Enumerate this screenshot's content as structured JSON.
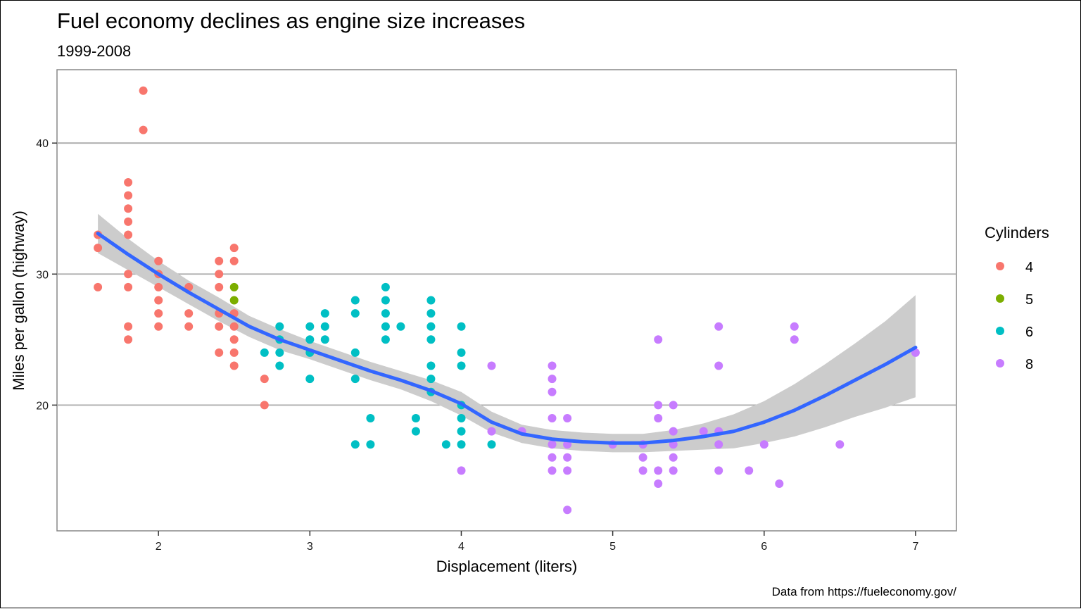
{
  "chart_data": {
    "type": "scatter",
    "title": "Fuel economy declines as engine size increases",
    "subtitle": "1999-2008",
    "xlabel": "Displacement (liters)",
    "ylabel": "Miles per gallon (highway)",
    "caption": "Data from https://fueleconomy.gov/",
    "xlim": [
      1.33,
      7.27
    ],
    "ylim": [
      10.4,
      45.6
    ],
    "x_ticks": [
      2,
      3,
      4,
      5,
      6,
      7
    ],
    "y_ticks": [
      20,
      30,
      40
    ],
    "grid": {
      "horizontal_major": true,
      "vertical": false
    },
    "legend": {
      "title": "Cylinders",
      "placement": "right",
      "entries": [
        {
          "label": "4",
          "color": "#F8766D"
        },
        {
          "label": "5",
          "color": "#7CAE00"
        },
        {
          "label": "6",
          "color": "#00BFC4"
        },
        {
          "label": "8",
          "color": "#C77CFF"
        }
      ]
    },
    "series": [
      {
        "name": "4",
        "color": "#F8766D",
        "points": [
          [
            1.6,
            33
          ],
          [
            1.6,
            32
          ],
          [
            1.6,
            29
          ],
          [
            1.8,
            37
          ],
          [
            1.8,
            36
          ],
          [
            1.8,
            35
          ],
          [
            1.8,
            34
          ],
          [
            1.8,
            33
          ],
          [
            1.8,
            30
          ],
          [
            1.8,
            29
          ],
          [
            1.8,
            26
          ],
          [
            1.8,
            25
          ],
          [
            1.9,
            44
          ],
          [
            1.9,
            41
          ],
          [
            2.0,
            31
          ],
          [
            2.0,
            30
          ],
          [
            2.0,
            29
          ],
          [
            2.0,
            28
          ],
          [
            2.0,
            27
          ],
          [
            2.0,
            26
          ],
          [
            2.2,
            29
          ],
          [
            2.2,
            27
          ],
          [
            2.2,
            26
          ],
          [
            2.4,
            31
          ],
          [
            2.4,
            30
          ],
          [
            2.4,
            29
          ],
          [
            2.4,
            27
          ],
          [
            2.4,
            26
          ],
          [
            2.4,
            24
          ],
          [
            2.5,
            32
          ],
          [
            2.5,
            31
          ],
          [
            2.5,
            27
          ],
          [
            2.5,
            26
          ],
          [
            2.5,
            25
          ],
          [
            2.5,
            24
          ],
          [
            2.5,
            23
          ],
          [
            2.7,
            22
          ],
          [
            2.7,
            20
          ]
        ]
      },
      {
        "name": "5",
        "color": "#7CAE00",
        "points": [
          [
            2.5,
            29
          ],
          [
            2.5,
            28
          ]
        ]
      },
      {
        "name": "6",
        "color": "#00BFC4",
        "points": [
          [
            2.7,
            24
          ],
          [
            2.8,
            26
          ],
          [
            2.8,
            25
          ],
          [
            2.8,
            24
          ],
          [
            2.8,
            23
          ],
          [
            3.0,
            26
          ],
          [
            3.0,
            25
          ],
          [
            3.0,
            24
          ],
          [
            3.0,
            22
          ],
          [
            3.1,
            27
          ],
          [
            3.1,
            26
          ],
          [
            3.1,
            25
          ],
          [
            3.3,
            28
          ],
          [
            3.3,
            27
          ],
          [
            3.3,
            24
          ],
          [
            3.3,
            22
          ],
          [
            3.3,
            17
          ],
          [
            3.4,
            19
          ],
          [
            3.4,
            17
          ],
          [
            3.5,
            29
          ],
          [
            3.5,
            28
          ],
          [
            3.5,
            27
          ],
          [
            3.5,
            26
          ],
          [
            3.5,
            25
          ],
          [
            3.6,
            26
          ],
          [
            3.7,
            19
          ],
          [
            3.7,
            18
          ],
          [
            3.8,
            28
          ],
          [
            3.8,
            27
          ],
          [
            3.8,
            26
          ],
          [
            3.8,
            25
          ],
          [
            3.8,
            23
          ],
          [
            3.8,
            22
          ],
          [
            3.8,
            21
          ],
          [
            3.9,
            17
          ],
          [
            4.0,
            26
          ],
          [
            4.0,
            24
          ],
          [
            4.0,
            23
          ],
          [
            4.0,
            20
          ],
          [
            4.0,
            19
          ],
          [
            4.0,
            18
          ],
          [
            4.0,
            17
          ],
          [
            4.2,
            17
          ]
        ]
      },
      {
        "name": "8",
        "color": "#C77CFF",
        "points": [
          [
            4.0,
            15
          ],
          [
            4.2,
            23
          ],
          [
            4.2,
            18
          ],
          [
            4.4,
            18
          ],
          [
            4.6,
            23
          ],
          [
            4.6,
            22
          ],
          [
            4.6,
            21
          ],
          [
            4.6,
            19
          ],
          [
            4.6,
            17
          ],
          [
            4.6,
            16
          ],
          [
            4.6,
            15
          ],
          [
            4.7,
            19
          ],
          [
            4.7,
            17
          ],
          [
            4.7,
            16
          ],
          [
            4.7,
            15
          ],
          [
            4.7,
            12
          ],
          [
            5.0,
            17
          ],
          [
            5.2,
            17
          ],
          [
            5.2,
            16
          ],
          [
            5.2,
            15
          ],
          [
            5.3,
            25
          ],
          [
            5.3,
            20
          ],
          [
            5.3,
            19
          ],
          [
            5.3,
            15
          ],
          [
            5.3,
            14
          ],
          [
            5.4,
            20
          ],
          [
            5.4,
            18
          ],
          [
            5.4,
            17
          ],
          [
            5.4,
            16
          ],
          [
            5.4,
            15
          ],
          [
            5.6,
            18
          ],
          [
            5.7,
            26
          ],
          [
            5.7,
            23
          ],
          [
            5.7,
            18
          ],
          [
            5.7,
            17
          ],
          [
            5.7,
            15
          ],
          [
            5.9,
            15
          ],
          [
            6.0,
            17
          ],
          [
            6.1,
            14
          ],
          [
            6.2,
            26
          ],
          [
            6.2,
            25
          ],
          [
            6.5,
            17
          ],
          [
            7.0,
            24
          ]
        ]
      }
    ],
    "smooth": {
      "method": "loess",
      "color": "#3366FF",
      "fill": "#cccccc",
      "points": [
        [
          1.6,
          33.1
        ],
        [
          1.8,
          31.5
        ],
        [
          2.0,
          30.0
        ],
        [
          2.2,
          28.6
        ],
        [
          2.4,
          27.3
        ],
        [
          2.6,
          26.0
        ],
        [
          2.8,
          25.0
        ],
        [
          3.0,
          24.2
        ],
        [
          3.2,
          23.4
        ],
        [
          3.4,
          22.6
        ],
        [
          3.6,
          21.9
        ],
        [
          3.8,
          21.1
        ],
        [
          4.0,
          20.1
        ],
        [
          4.2,
          18.7
        ],
        [
          4.4,
          17.8
        ],
        [
          4.6,
          17.4
        ],
        [
          4.8,
          17.2
        ],
        [
          5.0,
          17.1
        ],
        [
          5.2,
          17.1
        ],
        [
          5.4,
          17.3
        ],
        [
          5.6,
          17.6
        ],
        [
          5.8,
          18.0
        ],
        [
          6.0,
          18.7
        ],
        [
          6.2,
          19.6
        ],
        [
          6.4,
          20.7
        ],
        [
          6.6,
          21.9
        ],
        [
          6.8,
          23.1
        ],
        [
          7.0,
          24.4
        ]
      ],
      "upper": [
        [
          1.6,
          34.6
        ],
        [
          1.8,
          32.7
        ],
        [
          2.0,
          31.0
        ],
        [
          2.2,
          29.5
        ],
        [
          2.4,
          28.2
        ],
        [
          2.6,
          26.8
        ],
        [
          2.8,
          25.8
        ],
        [
          3.0,
          24.9
        ],
        [
          3.2,
          24.1
        ],
        [
          3.4,
          23.3
        ],
        [
          3.6,
          22.6
        ],
        [
          3.8,
          21.9
        ],
        [
          4.0,
          21.0
        ],
        [
          4.2,
          19.5
        ],
        [
          4.4,
          18.5
        ],
        [
          4.6,
          18.1
        ],
        [
          4.8,
          17.9
        ],
        [
          5.0,
          17.8
        ],
        [
          5.2,
          17.8
        ],
        [
          5.4,
          18.1
        ],
        [
          5.6,
          18.6
        ],
        [
          5.8,
          19.3
        ],
        [
          6.0,
          20.3
        ],
        [
          6.2,
          21.6
        ],
        [
          6.4,
          23.1
        ],
        [
          6.6,
          24.7
        ],
        [
          6.8,
          26.4
        ],
        [
          7.0,
          28.4
        ]
      ],
      "lower": [
        [
          1.6,
          31.6
        ],
        [
          1.8,
          30.3
        ],
        [
          2.0,
          29.0
        ],
        [
          2.2,
          27.7
        ],
        [
          2.4,
          26.4
        ],
        [
          2.6,
          25.2
        ],
        [
          2.8,
          24.2
        ],
        [
          3.0,
          23.5
        ],
        [
          3.2,
          22.7
        ],
        [
          3.4,
          21.9
        ],
        [
          3.6,
          21.2
        ],
        [
          3.8,
          20.3
        ],
        [
          4.0,
          19.2
        ],
        [
          4.2,
          17.9
        ],
        [
          4.4,
          17.1
        ],
        [
          4.6,
          16.7
        ],
        [
          4.8,
          16.5
        ],
        [
          5.0,
          16.4
        ],
        [
          5.2,
          16.4
        ],
        [
          5.4,
          16.5
        ],
        [
          5.6,
          16.6
        ],
        [
          5.8,
          16.7
        ],
        [
          6.0,
          17.1
        ],
        [
          6.2,
          17.6
        ],
        [
          6.4,
          18.3
        ],
        [
          6.6,
          19.1
        ],
        [
          6.8,
          19.8
        ],
        [
          7.0,
          20.6
        ]
      ]
    }
  }
}
